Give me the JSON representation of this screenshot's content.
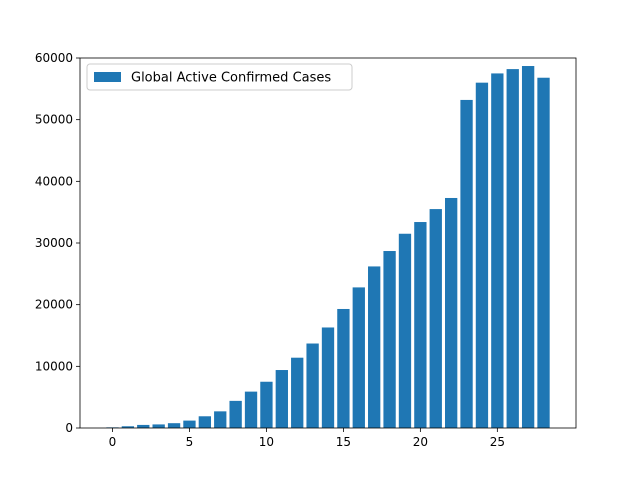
{
  "chart_data": {
    "type": "bar",
    "x": [
      0,
      1,
      2,
      3,
      4,
      5,
      6,
      7,
      8,
      9,
      10,
      11,
      12,
      13,
      14,
      15,
      16,
      17,
      18,
      19,
      20,
      21,
      22,
      23,
      24,
      25,
      26,
      27,
      28
    ],
    "series": [
      {
        "name": "Global Active Confirmed Cases",
        "color": "#1f77b4",
        "values": [
          100,
          280,
          500,
          580,
          780,
          1200,
          1900,
          2700,
          4400,
          5900,
          7500,
          9400,
          11400,
          13700,
          16300,
          19300,
          22800,
          26200,
          28700,
          31500,
          33400,
          35500,
          37300,
          53200,
          56000,
          57500,
          58200,
          58700,
          56800
        ]
      }
    ],
    "xlim": [
      -2.11,
      30.11
    ],
    "ylim": [
      0,
      60000
    ],
    "xticks": [
      0,
      5,
      10,
      15,
      20,
      25
    ],
    "yticks": [
      0,
      10000,
      20000,
      30000,
      40000,
      50000,
      60000
    ],
    "bar_width": 0.8,
    "grid": false,
    "legend": "upper-left",
    "title": "",
    "xlabel": "",
    "ylabel": ""
  }
}
